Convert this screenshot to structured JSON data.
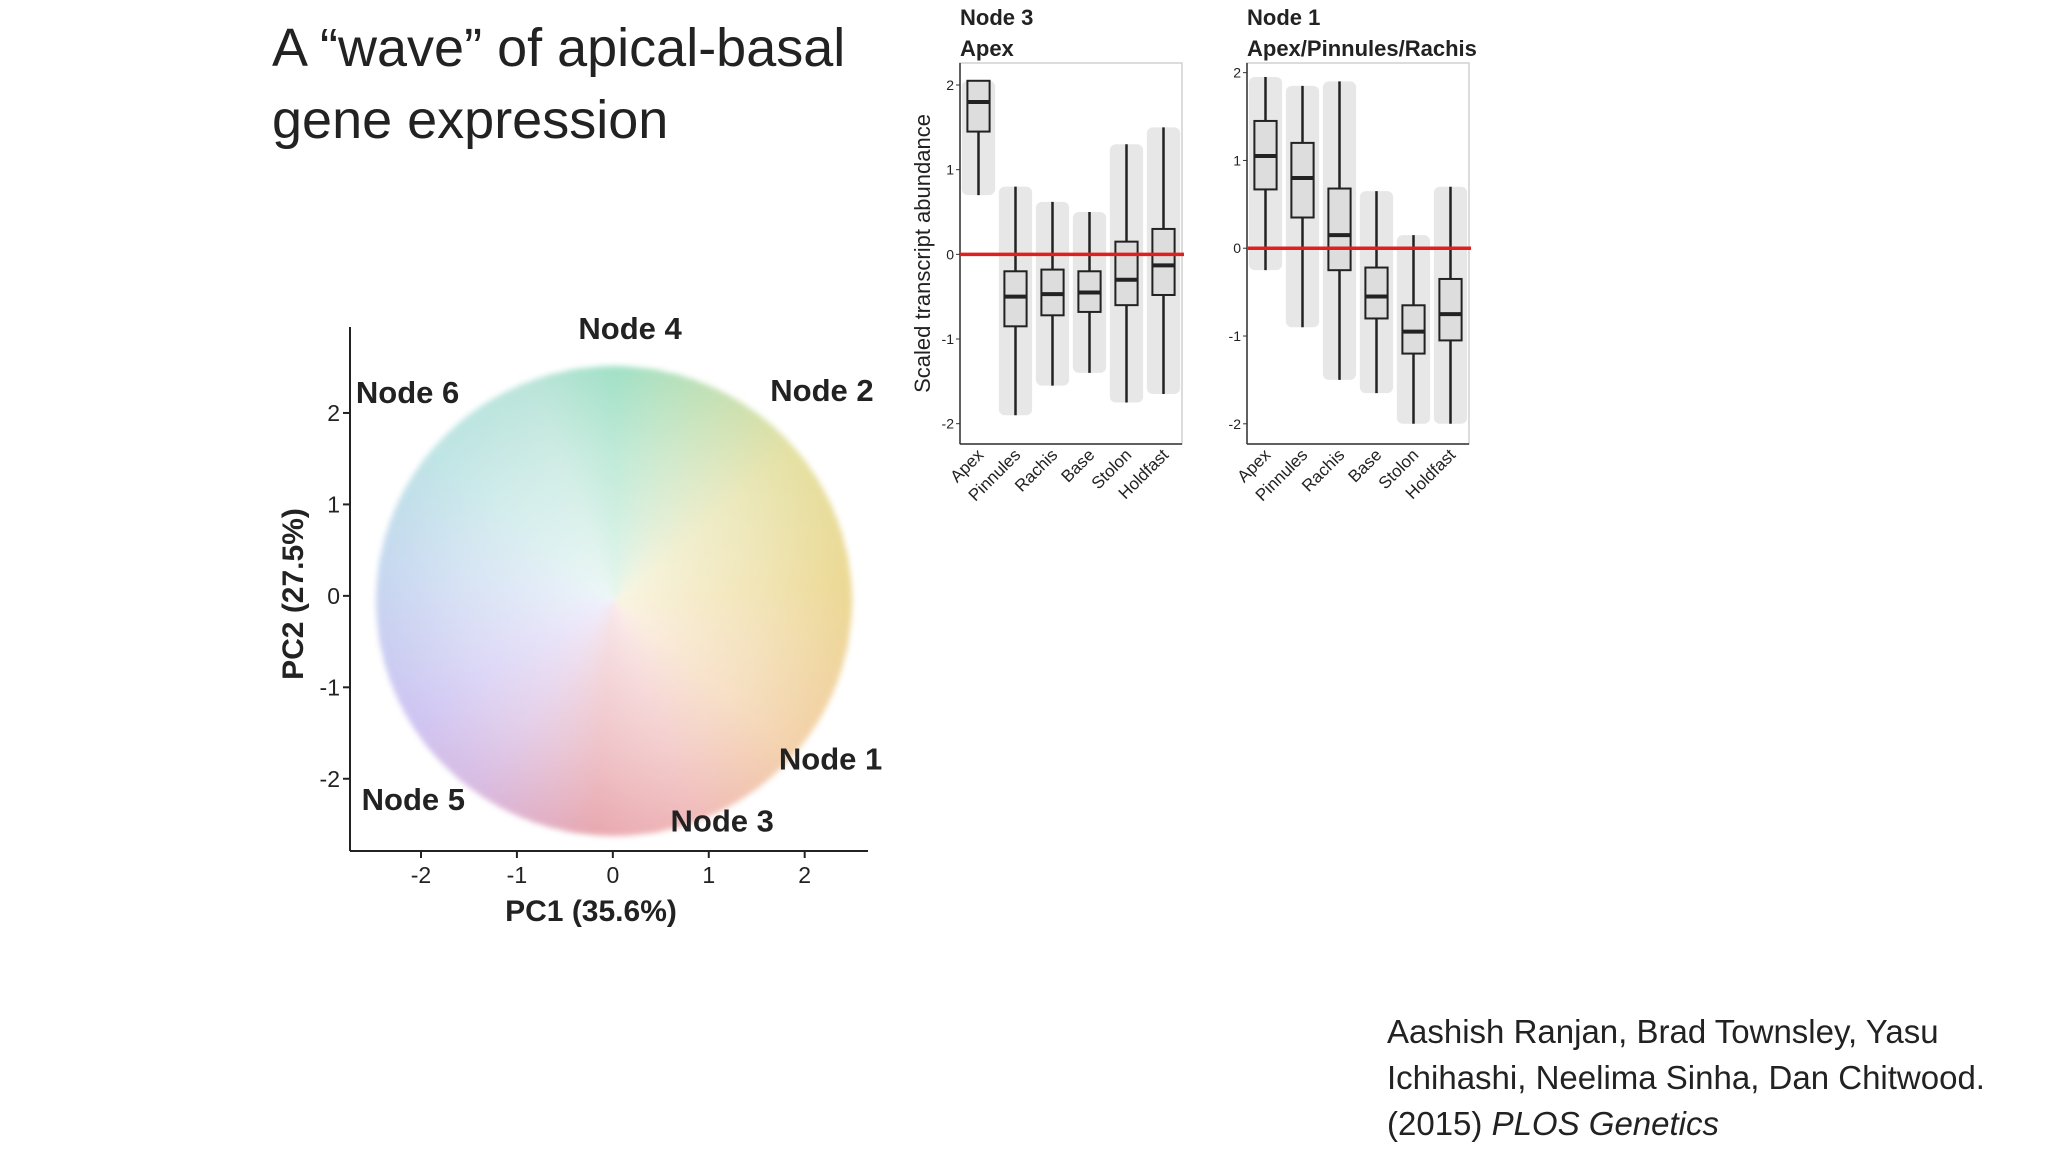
{
  "title_lines": [
    "A “wave” of apical-basal",
    "gene expression"
  ],
  "citation": {
    "lines": [
      "Aashish Ranjan, Brad Townsley, Yasu",
      "Ichihashi, Neelima Sinha, Dan Chitwood."
    ],
    "year": "(2015)",
    "journal": "PLOS Genetics"
  },
  "chart_data": [
    {
      "type": "scatter",
      "x_label": "PC1 (35.6%)",
      "y_label": "PC2 (27.5%)",
      "xlim": [
        -2.74,
        2.66
      ],
      "xticks": [
        -2,
        -1,
        0,
        1,
        2
      ],
      "ylim": [
        -2.79,
        2.94
      ],
      "yticks": [
        -2,
        -1,
        0,
        1,
        2
      ],
      "annotations": [
        {
          "text": "Node 4",
          "x": 0.18,
          "y": 2.92,
          "color": "#22b573"
        },
        {
          "text": "Node 6",
          "x": -2.14,
          "y": 2.22,
          "color": "#6cc6c8"
        },
        {
          "text": "Node 2",
          "x": 2.18,
          "y": 2.24,
          "color": "#d4a91a"
        },
        {
          "text": "Node 1",
          "x": 2.27,
          "y": -1.79,
          "color": "#f0a05c"
        },
        {
          "text": "Node 3",
          "x": 1.14,
          "y": -2.47,
          "color": "#c9404e"
        },
        {
          "text": "Node 5",
          "x": -2.08,
          "y": -2.23,
          "color": "#9b86e6"
        }
      ]
    },
    {
      "type": "box",
      "title": "Node 3",
      "subtitle": "Apex",
      "title_color": "#c9404e",
      "y_label": "Scaled transcript abundance",
      "categories": [
        "Apex",
        "Pinnules",
        "Rachis",
        "Base",
        "Stolon",
        "Holdfast"
      ],
      "boxes": [
        {
          "min": 0.7,
          "q1": 1.45,
          "median": 1.8,
          "q3": 2.05,
          "max": 2.05
        },
        {
          "min": -1.9,
          "q1": -0.85,
          "median": -0.5,
          "q3": -0.2,
          "max": 0.8
        },
        {
          "min": -1.55,
          "q1": -0.72,
          "median": -0.47,
          "q3": -0.18,
          "max": 0.62
        },
        {
          "min": -1.4,
          "q1": -0.68,
          "median": -0.45,
          "q3": -0.2,
          "max": 0.5
        },
        {
          "min": -1.75,
          "q1": -0.6,
          "median": -0.3,
          "q3": 0.15,
          "max": 1.3
        },
        {
          "min": -1.65,
          "q1": -0.48,
          "median": -0.13,
          "q3": 0.3,
          "max": 1.5
        }
      ],
      "hline": 0,
      "hline_color": "#e02020",
      "ylim": [
        -2.24,
        2.26
      ],
      "yticks": [
        -2,
        -1,
        0,
        1,
        2
      ]
    },
    {
      "type": "box",
      "title": "Node 1",
      "subtitle": "Apex/Pinnules/Rachis",
      "title_color": "#f0a05c",
      "categories": [
        "Apex",
        "Pinnules",
        "Rachis",
        "Base",
        "Stolon",
        "Holdfast"
      ],
      "boxes": [
        {
          "min": -0.25,
          "q1": 0.67,
          "median": 1.05,
          "q3": 1.45,
          "max": 1.95
        },
        {
          "min": -0.9,
          "q1": 0.35,
          "median": 0.8,
          "q3": 1.2,
          "max": 1.85
        },
        {
          "min": -1.5,
          "q1": -0.25,
          "median": 0.15,
          "q3": 0.68,
          "max": 1.9
        },
        {
          "min": -1.65,
          "q1": -0.8,
          "median": -0.55,
          "q3": -0.22,
          "max": 0.65
        },
        {
          "min": -2.0,
          "q1": -1.2,
          "median": -0.95,
          "q3": -0.65,
          "max": 0.15
        },
        {
          "min": -2.0,
          "q1": -1.05,
          "median": -0.75,
          "q3": -0.35,
          "max": 0.7
        }
      ],
      "hline": 0,
      "hline_color": "#e02020",
      "ylim": [
        -2.23,
        2.11
      ],
      "yticks": [
        -2,
        -1,
        0,
        1,
        2
      ]
    }
  ]
}
